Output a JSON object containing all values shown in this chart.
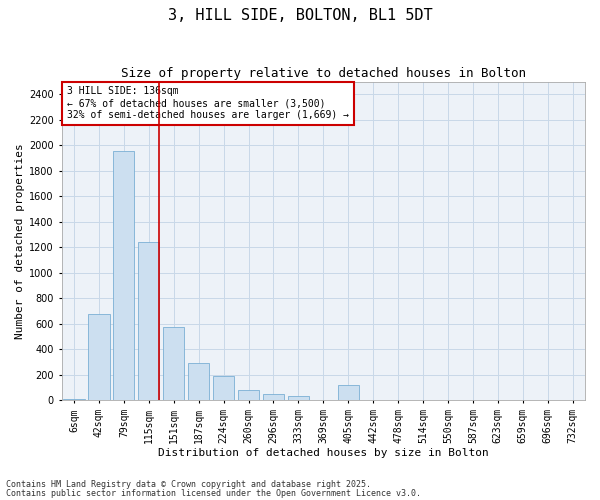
{
  "title": "3, HILL SIDE, BOLTON, BL1 5DT",
  "subtitle": "Size of property relative to detached houses in Bolton",
  "xlabel": "Distribution of detached houses by size in Bolton",
  "ylabel": "Number of detached properties",
  "bar_color": "#ccdff0",
  "bar_edge_color": "#7aafd4",
  "grid_color": "#c8d8e8",
  "background_color": "#edf2f8",
  "annotation_box_color": "#cc0000",
  "vline_color": "#cc0000",
  "categories": [
    "6sqm",
    "42sqm",
    "79sqm",
    "115sqm",
    "151sqm",
    "187sqm",
    "224sqm",
    "260sqm",
    "296sqm",
    "333sqm",
    "369sqm",
    "405sqm",
    "442sqm",
    "478sqm",
    "514sqm",
    "550sqm",
    "587sqm",
    "623sqm",
    "659sqm",
    "696sqm",
    "732sqm"
  ],
  "values": [
    12,
    680,
    1960,
    1240,
    575,
    290,
    195,
    80,
    50,
    35,
    0,
    120,
    0,
    0,
    0,
    0,
    0,
    0,
    0,
    0,
    0
  ],
  "ylim": [
    0,
    2500
  ],
  "yticks": [
    0,
    200,
    400,
    600,
    800,
    1000,
    1200,
    1400,
    1600,
    1800,
    2000,
    2200,
    2400
  ],
  "property_label": "3 HILL SIDE: 136sqm",
  "annotation_line1": "← 67% of detached houses are smaller (3,500)",
  "annotation_line2": "32% of semi-detached houses are larger (1,669) →",
  "vline_x_index": 3.42,
  "footer_line1": "Contains HM Land Registry data © Crown copyright and database right 2025.",
  "footer_line2": "Contains public sector information licensed under the Open Government Licence v3.0.",
  "title_fontsize": 11,
  "subtitle_fontsize": 9,
  "axis_label_fontsize": 8,
  "tick_fontsize": 7,
  "annotation_fontsize": 7,
  "footer_fontsize": 6
}
